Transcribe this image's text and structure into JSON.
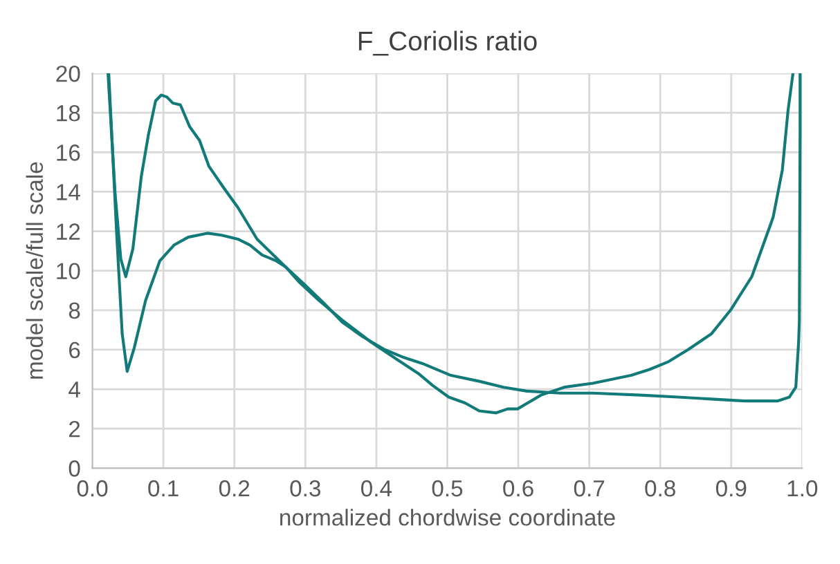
{
  "chart_data": {
    "type": "line",
    "title": "F_Coriolis ratio",
    "xlabel": "normalized chordwise coordinate",
    "ylabel": "model scale/full scale",
    "xlim": [
      0,
      1
    ],
    "ylim": [
      0,
      20
    ],
    "xticks": [
      {
        "value": 0,
        "label": "0.0"
      },
      {
        "value": 0.1,
        "label": "0.1"
      },
      {
        "value": 0.2,
        "label": "0.2"
      },
      {
        "value": 0.3,
        "label": "0.3"
      },
      {
        "value": 0.4,
        "label": "0.4"
      },
      {
        "value": 0.5,
        "label": "0.5"
      },
      {
        "value": 0.6,
        "label": "0.6"
      },
      {
        "value": 0.7,
        "label": "0.7"
      },
      {
        "value": 0.8,
        "label": "0.8"
      },
      {
        "value": 0.9,
        "label": "0.9"
      },
      {
        "value": 1,
        "label": "1.0"
      }
    ],
    "yticks": [
      0,
      2,
      4,
      6,
      8,
      10,
      12,
      14,
      16,
      18,
      20
    ],
    "grid": true,
    "marker": "none",
    "line_style": "solid",
    "series": [
      {
        "color": "#127a78",
        "x": [
          0.022,
          0.032,
          0.04,
          0.047,
          0.057,
          0.069,
          0.079,
          0.089,
          0.097,
          0.105,
          0.113,
          0.124,
          0.137,
          0.151,
          0.164,
          0.185,
          0.205,
          0.232,
          0.252,
          0.272,
          0.292,
          0.319,
          0.352,
          0.392,
          0.425,
          0.459,
          0.479,
          0.502,
          0.525,
          0.545,
          0.569,
          0.585,
          0.599,
          0.632,
          0.665,
          0.705,
          0.732,
          0.759,
          0.785,
          0.812,
          0.839,
          0.872,
          0.899,
          0.929,
          0.945,
          0.959,
          0.972,
          0.98,
          0.987
        ],
        "values": [
          20.0,
          13.9,
          10.6,
          9.7,
          11.1,
          14.8,
          16.9,
          18.6,
          18.9,
          18.8,
          18.5,
          18.4,
          17.3,
          16.6,
          15.3,
          14.2,
          13.2,
          11.6,
          10.9,
          10.2,
          9.4,
          8.5,
          7.5,
          6.4,
          5.6,
          4.8,
          4.2,
          3.6,
          3.3,
          2.9,
          2.8,
          3.0,
          3.0,
          3.7,
          4.1,
          4.3,
          4.5,
          4.7,
          5.0,
          5.4,
          6.0,
          6.8,
          8.0,
          9.7,
          11.3,
          12.7,
          15.1,
          18.1,
          20.0
        ]
      },
      {
        "color": "#127a78",
        "x": [
          0.023,
          0.034,
          0.042,
          0.049,
          0.059,
          0.075,
          0.095,
          0.115,
          0.135,
          0.162,
          0.182,
          0.205,
          0.222,
          0.239,
          0.259,
          0.272,
          0.299,
          0.325,
          0.352,
          0.379,
          0.412,
          0.439,
          0.465,
          0.505,
          0.545,
          0.579,
          0.612,
          0.659,
          0.705,
          0.772,
          0.825,
          0.872,
          0.919,
          0.965,
          0.982,
          0.991,
          0.995,
          0.996,
          0.997,
          0.997
        ],
        "values": [
          20.0,
          12.0,
          6.8,
          4.9,
          6.1,
          8.5,
          10.5,
          11.3,
          11.7,
          11.9,
          11.8,
          11.6,
          11.3,
          10.8,
          10.5,
          10.2,
          9.3,
          8.4,
          7.4,
          6.7,
          6.0,
          5.6,
          5.3,
          4.7,
          4.4,
          4.1,
          3.9,
          3.8,
          3.8,
          3.7,
          3.6,
          3.5,
          3.4,
          3.4,
          3.6,
          4.1,
          6.4,
          7.5,
          16.9,
          20.0
        ]
      }
    ]
  }
}
